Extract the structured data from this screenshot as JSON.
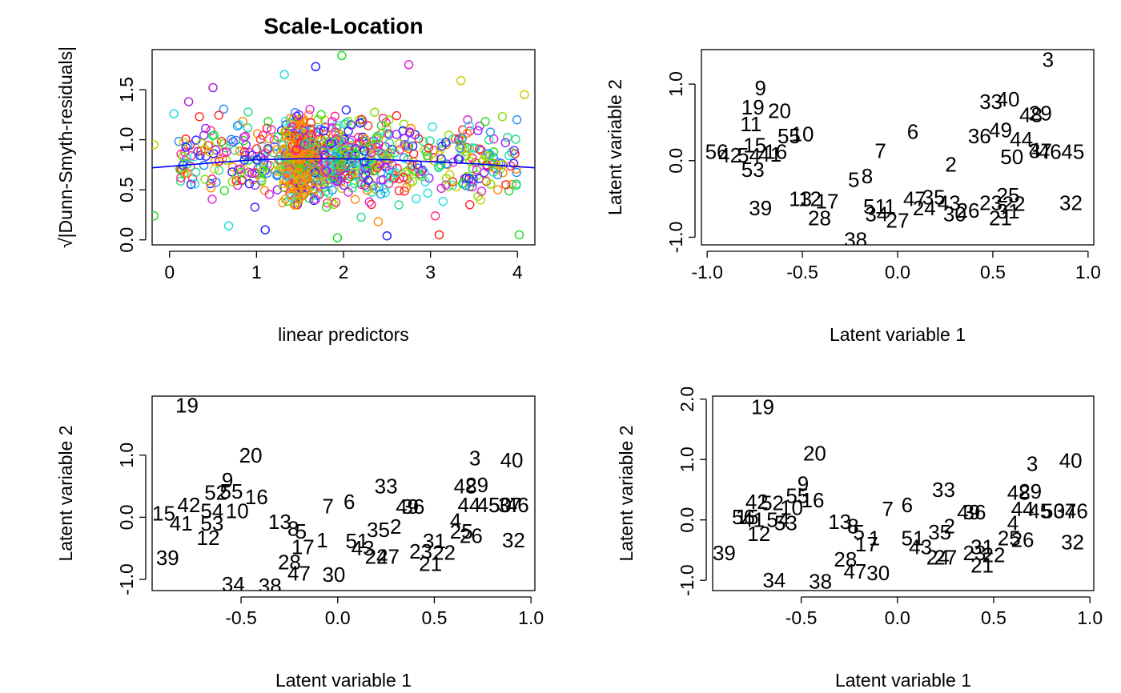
{
  "chart_data": [
    {
      "type": "scatter",
      "title": "Scale-Location",
      "xlabel": "linear predictors",
      "ylabel": "√|Dunn-Smyth-residuals|",
      "xlim": [
        -0.2,
        4.2
      ],
      "ylim": [
        -0.05,
        1.9
      ],
      "xticks": [
        0,
        1,
        2,
        3,
        4
      ],
      "yticks": [
        0.0,
        0.5,
        1.0,
        1.5
      ],
      "x_tick_labels": [
        "0",
        "1",
        "2",
        "3",
        "4"
      ],
      "y_tick_labels": [
        "0.0",
        "0.5",
        "1.0",
        "1.5"
      ],
      "point_marker": "open-circle",
      "n_points_approx": 1100,
      "point_colors": "rainbow palette, one color per response species",
      "trend_line": {
        "color": "#0000ff",
        "x": [
          -0.2,
          0.5,
          1.0,
          1.5,
          2.0,
          2.5,
          3.0,
          3.5,
          4.2
        ],
        "y": [
          0.72,
          0.77,
          0.8,
          0.81,
          0.81,
          0.8,
          0.78,
          0.76,
          0.72
        ]
      },
      "points_sample": [
        {
          "x": -0.18,
          "y": 0.95,
          "c": "#cccc00"
        },
        {
          "x": -0.18,
          "y": 0.24,
          "c": "#22dd22"
        },
        {
          "x": 0.05,
          "y": 1.26,
          "c": "#22dddd"
        },
        {
          "x": 0.22,
          "y": 1.38,
          "c": "#aa22dd"
        },
        {
          "x": 0.5,
          "y": 1.52,
          "c": "#aa22dd"
        },
        {
          "x": 0.68,
          "y": 0.14,
          "c": "#22dddd"
        },
        {
          "x": 1.1,
          "y": 0.1,
          "c": "#2222ff"
        },
        {
          "x": 1.32,
          "y": 1.65,
          "c": "#22dddd"
        },
        {
          "x": 1.68,
          "y": 1.73,
          "c": "#2222ff"
        },
        {
          "x": 1.98,
          "y": 1.84,
          "c": "#22dd22"
        },
        {
          "x": 1.93,
          "y": 0.02,
          "c": "#22dd22"
        },
        {
          "x": 2.5,
          "y": 0.04,
          "c": "#2222ff"
        },
        {
          "x": 2.75,
          "y": 1.75,
          "c": "#dd22dd"
        },
        {
          "x": 3.1,
          "y": 0.05,
          "c": "#ff2222"
        },
        {
          "x": 3.35,
          "y": 1.59,
          "c": "#cccc00"
        },
        {
          "x": 4.02,
          "y": 0.05,
          "c": "#22dd22"
        },
        {
          "x": 4.08,
          "y": 1.45,
          "c": "#cccc00"
        },
        {
          "x": 3.97,
          "y": 0.86,
          "c": "#ff2222"
        }
      ]
    },
    {
      "type": "scatter",
      "xlabel": "Latent variable  1",
      "ylabel": "Latent variable  2",
      "xlim": [
        -1.03,
        1.03
      ],
      "ylim": [
        -1.1,
        1.45
      ],
      "xticks": [
        -1.0,
        -0.5,
        0.0,
        0.5,
        1.0
      ],
      "yticks": [
        -1.0,
        0.0,
        1.0
      ],
      "x_tick_labels": [
        "-1.0",
        "-0.5",
        "0.0",
        "0.5",
        "1.0"
      ],
      "y_tick_labels": [
        "-1.0",
        "0.0",
        "1.0"
      ],
      "point_marker": "site-number-label",
      "points": [
        {
          "label": "3",
          "x": 0.79,
          "y": 1.32
        },
        {
          "label": "9",
          "x": -0.72,
          "y": 0.95
        },
        {
          "label": "19",
          "x": -0.76,
          "y": 0.7
        },
        {
          "label": "20",
          "x": -0.62,
          "y": 0.65
        },
        {
          "label": "11",
          "x": -0.77,
          "y": 0.48
        },
        {
          "label": "15",
          "x": -0.75,
          "y": 0.2
        },
        {
          "label": "55",
          "x": -0.57,
          "y": 0.32
        },
        {
          "label": "10",
          "x": -0.5,
          "y": 0.35
        },
        {
          "label": "56",
          "x": -0.95,
          "y": 0.12
        },
        {
          "label": "42",
          "x": -0.88,
          "y": 0.07
        },
        {
          "label": "54",
          "x": -0.78,
          "y": 0.07
        },
        {
          "label": "41",
          "x": -0.67,
          "y": 0.08
        },
        {
          "label": "16",
          "x": -0.64,
          "y": 0.12
        },
        {
          "label": "53",
          "x": -0.76,
          "y": -0.12
        },
        {
          "label": "13",
          "x": -0.51,
          "y": -0.5
        },
        {
          "label": "12",
          "x": -0.46,
          "y": -0.5
        },
        {
          "label": "39",
          "x": -0.72,
          "y": -0.62
        },
        {
          "label": "17",
          "x": -0.37,
          "y": -0.53
        },
        {
          "label": "28",
          "x": -0.41,
          "y": -0.75
        },
        {
          "label": "38",
          "x": -0.22,
          "y": -1.03
        },
        {
          "label": "6",
          "x": 0.08,
          "y": 0.38
        },
        {
          "label": "7",
          "x": -0.09,
          "y": 0.13
        },
        {
          "label": "8",
          "x": -0.16,
          "y": -0.2
        },
        {
          "label": "5",
          "x": -0.23,
          "y": -0.25
        },
        {
          "label": "1",
          "x": -0.04,
          "y": -0.6
        },
        {
          "label": "51",
          "x": -0.12,
          "y": -0.6
        },
        {
          "label": "34",
          "x": -0.11,
          "y": -0.7
        },
        {
          "label": "27",
          "x": 0.0,
          "y": -0.78
        },
        {
          "label": "47",
          "x": 0.09,
          "y": -0.5
        },
        {
          "label": "24",
          "x": 0.14,
          "y": -0.62
        },
        {
          "label": "35",
          "x": 0.19,
          "y": -0.48
        },
        {
          "label": "43",
          "x": 0.27,
          "y": -0.55
        },
        {
          "label": "2",
          "x": 0.28,
          "y": -0.05
        },
        {
          "label": "36",
          "x": 0.43,
          "y": 0.32
        },
        {
          "label": "30",
          "x": 0.3,
          "y": -0.7
        },
        {
          "label": "26",
          "x": 0.37,
          "y": -0.65
        },
        {
          "label": "33",
          "x": 0.49,
          "y": 0.77
        },
        {
          "label": "40",
          "x": 0.58,
          "y": 0.8
        },
        {
          "label": "49",
          "x": 0.54,
          "y": 0.4
        },
        {
          "label": "48",
          "x": 0.7,
          "y": 0.6
        },
        {
          "label": "29",
          "x": 0.75,
          "y": 0.62
        },
        {
          "label": "44",
          "x": 0.65,
          "y": 0.28
        },
        {
          "label": "4",
          "x": 0.72,
          "y": 0.14
        },
        {
          "label": "37",
          "x": 0.75,
          "y": 0.13
        },
        {
          "label": "46",
          "x": 0.8,
          "y": 0.12
        },
        {
          "label": "45",
          "x": 0.92,
          "y": 0.12
        },
        {
          "label": "50",
          "x": 0.6,
          "y": 0.05
        },
        {
          "label": "23",
          "x": 0.49,
          "y": -0.55
        },
        {
          "label": "25",
          "x": 0.58,
          "y": -0.45
        },
        {
          "label": "22",
          "x": 0.61,
          "y": -0.56
        },
        {
          "label": "31",
          "x": 0.58,
          "y": -0.66
        },
        {
          "label": "21",
          "x": 0.54,
          "y": -0.75
        },
        {
          "label": "32",
          "x": 0.91,
          "y": -0.55
        }
      ]
    },
    {
      "type": "scatter",
      "xlabel": "Latent variable  1",
      "ylabel": "Latent variable  2",
      "xlim": [
        -0.96,
        1.02
      ],
      "ylim": [
        -1.18,
        1.95
      ],
      "xticks": [
        -0.5,
        0.0,
        0.5,
        1.0
      ],
      "yticks": [
        -1.0,
        0.0,
        1.0
      ],
      "x_tick_labels": [
        "-0.5",
        "0.0",
        "0.5",
        "1.0"
      ],
      "y_tick_labels": [
        "-1.0",
        "0.0",
        "1.0"
      ],
      "point_marker": "site-number-label",
      "points": [
        {
          "label": "19",
          "x": -0.78,
          "y": 1.8
        },
        {
          "label": "20",
          "x": -0.45,
          "y": 1.0
        },
        {
          "label": "9",
          "x": -0.57,
          "y": 0.6
        },
        {
          "label": "52",
          "x": -0.63,
          "y": 0.4
        },
        {
          "label": "55",
          "x": -0.55,
          "y": 0.42
        },
        {
          "label": "16",
          "x": -0.42,
          "y": 0.33
        },
        {
          "label": "42",
          "x": -0.77,
          "y": 0.2
        },
        {
          "label": "15",
          "x": -0.9,
          "y": 0.06
        },
        {
          "label": "54",
          "x": -0.65,
          "y": 0.1
        },
        {
          "label": "10",
          "x": -0.52,
          "y": 0.1
        },
        {
          "label": "41",
          "x": -0.81,
          "y": -0.1
        },
        {
          "label": "53",
          "x": -0.65,
          "y": -0.1
        },
        {
          "label": "12",
          "x": -0.67,
          "y": -0.33
        },
        {
          "label": "39",
          "x": -0.88,
          "y": -0.65
        },
        {
          "label": "34",
          "x": -0.54,
          "y": -1.08
        },
        {
          "label": "38",
          "x": -0.35,
          "y": -1.1
        },
        {
          "label": "13",
          "x": -0.3,
          "y": -0.07
        },
        {
          "label": "8",
          "x": -0.23,
          "y": -0.18
        },
        {
          "label": "5",
          "x": -0.19,
          "y": -0.23
        },
        {
          "label": "17",
          "x": -0.18,
          "y": -0.48
        },
        {
          "label": "1",
          "x": -0.08,
          "y": -0.37
        },
        {
          "label": "28",
          "x": -0.25,
          "y": -0.72
        },
        {
          "label": "47",
          "x": -0.2,
          "y": -0.9
        },
        {
          "label": "30",
          "x": -0.02,
          "y": -0.92
        },
        {
          "label": "7",
          "x": -0.05,
          "y": 0.18
        },
        {
          "label": "6",
          "x": 0.06,
          "y": 0.25
        },
        {
          "label": "51",
          "x": 0.1,
          "y": -0.38
        },
        {
          "label": "43",
          "x": 0.13,
          "y": -0.5
        },
        {
          "label": "35",
          "x": 0.21,
          "y": -0.2
        },
        {
          "label": "2",
          "x": 0.3,
          "y": -0.15
        },
        {
          "label": "24",
          "x": 0.2,
          "y": -0.63
        },
        {
          "label": "27",
          "x": 0.26,
          "y": -0.63
        },
        {
          "label": "33",
          "x": 0.25,
          "y": 0.5
        },
        {
          "label": "49",
          "x": 0.36,
          "y": 0.17
        },
        {
          "label": "36",
          "x": 0.39,
          "y": 0.17
        },
        {
          "label": "23",
          "x": 0.43,
          "y": -0.55
        },
        {
          "label": "31",
          "x": 0.5,
          "y": -0.38
        },
        {
          "label": "22",
          "x": 0.55,
          "y": -0.57
        },
        {
          "label": "21",
          "x": 0.48,
          "y": -0.75
        },
        {
          "label": "4",
          "x": 0.61,
          "y": -0.05
        },
        {
          "label": "25",
          "x": 0.64,
          "y": -0.23
        },
        {
          "label": "26",
          "x": 0.69,
          "y": -0.3
        },
        {
          "label": "3",
          "x": 0.71,
          "y": 0.95
        },
        {
          "label": "48",
          "x": 0.66,
          "y": 0.5
        },
        {
          "label": "29",
          "x": 0.72,
          "y": 0.52
        },
        {
          "label": "44",
          "x": 0.68,
          "y": 0.2
        },
        {
          "label": "45",
          "x": 0.78,
          "y": 0.2
        },
        {
          "label": "50",
          "x": 0.84,
          "y": 0.2
        },
        {
          "label": "37",
          "x": 0.89,
          "y": 0.2
        },
        {
          "label": "46",
          "x": 0.93,
          "y": 0.2
        },
        {
          "label": "40",
          "x": 0.9,
          "y": 0.92
        },
        {
          "label": "32",
          "x": 0.91,
          "y": -0.37
        }
      ]
    },
    {
      "type": "scatter",
      "xlabel": "Latent variable  1",
      "ylabel": "Latent variable  2",
      "xlim": [
        -0.96,
        1.02
      ],
      "ylim": [
        -1.17,
        2.05
      ],
      "xticks": [
        -0.5,
        0.0,
        0.5,
        1.0
      ],
      "yticks": [
        -1.0,
        0.0,
        1.0,
        2.0
      ],
      "x_tick_labels": [
        "-0.5",
        "0.0",
        "0.5",
        "1.0"
      ],
      "y_tick_labels": [
        "-1.0",
        "0.0",
        "1.0",
        "2.0"
      ],
      "point_marker": "site-number-label",
      "points": [
        {
          "label": "19",
          "x": -0.7,
          "y": 1.87
        },
        {
          "label": "20",
          "x": -0.43,
          "y": 1.1
        },
        {
          "label": "9",
          "x": -0.49,
          "y": 0.6
        },
        {
          "label": "55",
          "x": -0.52,
          "y": 0.4
        },
        {
          "label": "16",
          "x": -0.44,
          "y": 0.33
        },
        {
          "label": "42",
          "x": -0.73,
          "y": 0.3
        },
        {
          "label": "52",
          "x": -0.65,
          "y": 0.28
        },
        {
          "label": "10",
          "x": -0.55,
          "y": 0.2
        },
        {
          "label": "15",
          "x": -0.78,
          "y": 0.05
        },
        {
          "label": "56",
          "x": -0.8,
          "y": 0.05
        },
        {
          "label": "41",
          "x": -0.75,
          "y": 0.0
        },
        {
          "label": "54",
          "x": -0.62,
          "y": 0.0
        },
        {
          "label": "53",
          "x": -0.58,
          "y": -0.05
        },
        {
          "label": "12",
          "x": -0.72,
          "y": -0.23
        },
        {
          "label": "39",
          "x": -0.9,
          "y": -0.55
        },
        {
          "label": "34",
          "x": -0.64,
          "y": -1.0
        },
        {
          "label": "38",
          "x": -0.4,
          "y": -1.02
        },
        {
          "label": "13",
          "x": -0.3,
          "y": -0.03
        },
        {
          "label": "8",
          "x": -0.23,
          "y": -0.1
        },
        {
          "label": "5",
          "x": -0.2,
          "y": -0.2
        },
        {
          "label": "17",
          "x": -0.16,
          "y": -0.4
        },
        {
          "label": "1",
          "x": -0.12,
          "y": -0.3
        },
        {
          "label": "28",
          "x": -0.27,
          "y": -0.65
        },
        {
          "label": "47",
          "x": -0.22,
          "y": -0.85
        },
        {
          "label": "30",
          "x": -0.1,
          "y": -0.88
        },
        {
          "label": "7",
          "x": -0.05,
          "y": 0.18
        },
        {
          "label": "6",
          "x": 0.05,
          "y": 0.25
        },
        {
          "label": "51",
          "x": 0.08,
          "y": -0.3
        },
        {
          "label": "43",
          "x": 0.12,
          "y": -0.45
        },
        {
          "label": "35",
          "x": 0.22,
          "y": -0.2
        },
        {
          "label": "2",
          "x": 0.27,
          "y": -0.1
        },
        {
          "label": "24",
          "x": 0.21,
          "y": -0.62
        },
        {
          "label": "27",
          "x": 0.25,
          "y": -0.62
        },
        {
          "label": "33",
          "x": 0.24,
          "y": 0.5
        },
        {
          "label": "49",
          "x": 0.37,
          "y": 0.13
        },
        {
          "label": "36",
          "x": 0.4,
          "y": 0.13
        },
        {
          "label": "23",
          "x": 0.4,
          "y": -0.55
        },
        {
          "label": "31",
          "x": 0.44,
          "y": -0.45
        },
        {
          "label": "22",
          "x": 0.5,
          "y": -0.58
        },
        {
          "label": "21",
          "x": 0.44,
          "y": -0.75
        },
        {
          "label": "4",
          "x": 0.6,
          "y": -0.05
        },
        {
          "label": "25",
          "x": 0.58,
          "y": -0.3
        },
        {
          "label": "26",
          "x": 0.65,
          "y": -0.33
        },
        {
          "label": "3",
          "x": 0.7,
          "y": 0.93
        },
        {
          "label": "48",
          "x": 0.63,
          "y": 0.45
        },
        {
          "label": "29",
          "x": 0.69,
          "y": 0.47
        },
        {
          "label": "44",
          "x": 0.65,
          "y": 0.18
        },
        {
          "label": "45",
          "x": 0.74,
          "y": 0.15
        },
        {
          "label": "50",
          "x": 0.81,
          "y": 0.15
        },
        {
          "label": "37",
          "x": 0.87,
          "y": 0.15
        },
        {
          "label": "46",
          "x": 0.93,
          "y": 0.15
        },
        {
          "label": "40",
          "x": 0.9,
          "y": 0.98
        },
        {
          "label": "32",
          "x": 0.91,
          "y": -0.37
        }
      ]
    }
  ]
}
